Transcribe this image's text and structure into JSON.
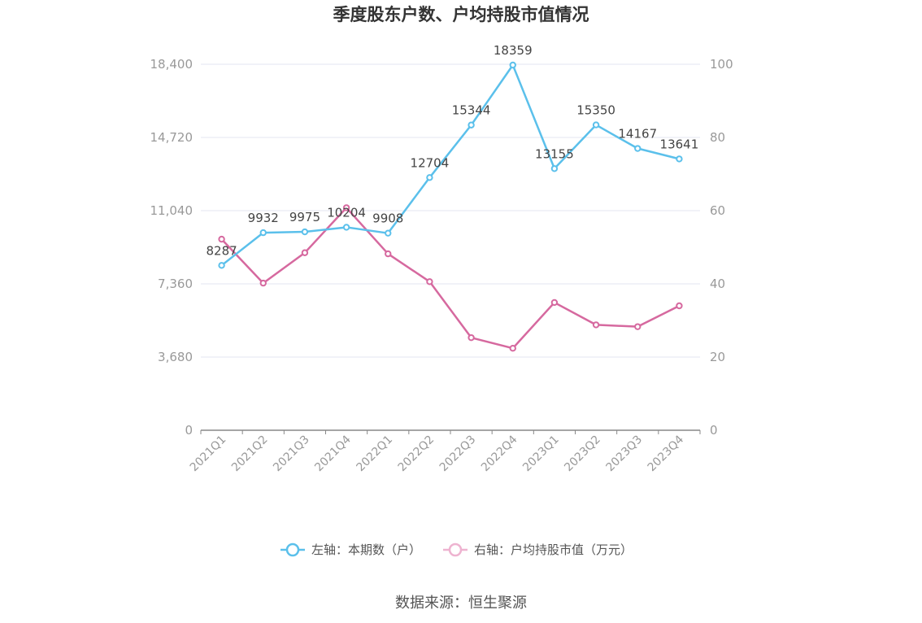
{
  "chart_data": {
    "type": "line",
    "title": "季度股东户数、户均持股市值情况",
    "categories": [
      "2021Q1",
      "2021Q2",
      "2021Q3",
      "2021Q4",
      "2022Q1",
      "2022Q2",
      "2022Q3",
      "2022Q4",
      "2023Q1",
      "2023Q2",
      "2023Q3",
      "2023Q4"
    ],
    "y_left": {
      "ticks": [
        "0",
        "3,680",
        "7,360",
        "11,040",
        "14,720",
        "18,400"
      ],
      "range": [
        0,
        18400
      ]
    },
    "y_right": {
      "ticks": [
        "0",
        "20",
        "40",
        "60",
        "80",
        "100"
      ],
      "range": [
        0,
        100
      ]
    },
    "series": [
      {
        "name": "左轴：本期数（户）",
        "axis": "left",
        "color": "#5bc0eb",
        "values": [
          8287,
          9932,
          9975,
          10204,
          9908,
          12704,
          15344,
          18359,
          13155,
          15350,
          14167,
          13641
        ],
        "labels": [
          "8287",
          "9932",
          "9975",
          "10204",
          "9908",
          "12704",
          "15344",
          "18359",
          "13155",
          "15350",
          "14167",
          "13641"
        ]
      },
      {
        "name": "右轴：户均持股市值（万元）",
        "axis": "right",
        "color": "#d6699f",
        "values": [
          52.2,
          40.2,
          48.5,
          60.8,
          48.2,
          40.6,
          25.3,
          22.4,
          34.9,
          28.8,
          28.3,
          34.0
        ]
      }
    ],
    "grid": true,
    "legend": "bottom-center"
  },
  "source": "数据来源：恒生聚源"
}
